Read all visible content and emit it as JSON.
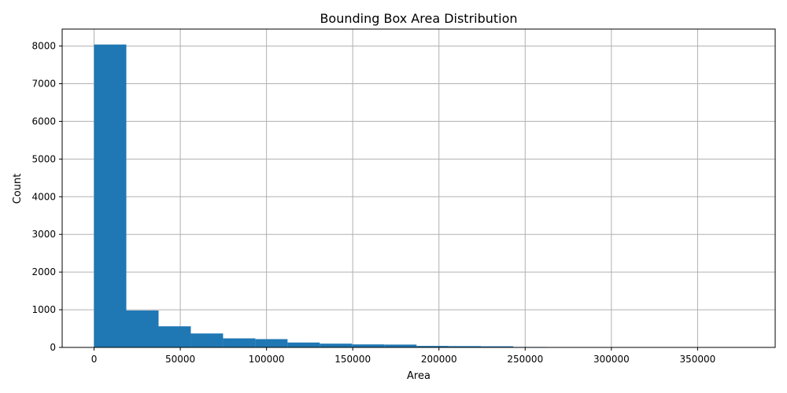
{
  "chart_data": {
    "type": "bar",
    "title": "Bounding Box Area Distribution",
    "xlabel": "Area",
    "ylabel": "Count",
    "xlim": [
      -18500,
      395000
    ],
    "ylim": [
      0,
      8450
    ],
    "x_ticks": [
      0,
      50000,
      100000,
      150000,
      200000,
      250000,
      300000,
      350000
    ],
    "x_tick_labels": [
      "0",
      "50000",
      "100000",
      "150000",
      "200000",
      "250000",
      "300000",
      "350000"
    ],
    "y_ticks": [
      0,
      1000,
      2000,
      3000,
      4000,
      5000,
      6000,
      7000,
      8000
    ],
    "y_tick_labels": [
      "0",
      "1000",
      "2000",
      "3000",
      "4000",
      "5000",
      "6000",
      "7000",
      "8000"
    ],
    "grid": true,
    "bar_color": "#1f77b4",
    "bins": [
      {
        "x0": 0,
        "x1": 18700,
        "count": 8040
      },
      {
        "x0": 18700,
        "x1": 37400,
        "count": 980
      },
      {
        "x0": 37400,
        "x1": 56100,
        "count": 560
      },
      {
        "x0": 56100,
        "x1": 74800,
        "count": 370
      },
      {
        "x0": 74800,
        "x1": 93500,
        "count": 240
      },
      {
        "x0": 93500,
        "x1": 112200,
        "count": 220
      },
      {
        "x0": 112200,
        "x1": 130900,
        "count": 130
      },
      {
        "x0": 130900,
        "x1": 149600,
        "count": 100
      },
      {
        "x0": 149600,
        "x1": 168300,
        "count": 80
      },
      {
        "x0": 168300,
        "x1": 187000,
        "count": 75
      },
      {
        "x0": 187000,
        "x1": 205700,
        "count": 40
      },
      {
        "x0": 205700,
        "x1": 224400,
        "count": 35
      },
      {
        "x0": 224400,
        "x1": 243100,
        "count": 30
      },
      {
        "x0": 243100,
        "x1": 261800,
        "count": 12
      },
      {
        "x0": 261800,
        "x1": 280500,
        "count": 10
      },
      {
        "x0": 280500,
        "x1": 299200,
        "count": 8
      },
      {
        "x0": 299200,
        "x1": 317900,
        "count": 6
      },
      {
        "x0": 317900,
        "x1": 336600,
        "count": 3
      },
      {
        "x0": 336600,
        "x1": 355300,
        "count": 2
      },
      {
        "x0": 355300,
        "x1": 374000,
        "count": 2
      }
    ]
  }
}
